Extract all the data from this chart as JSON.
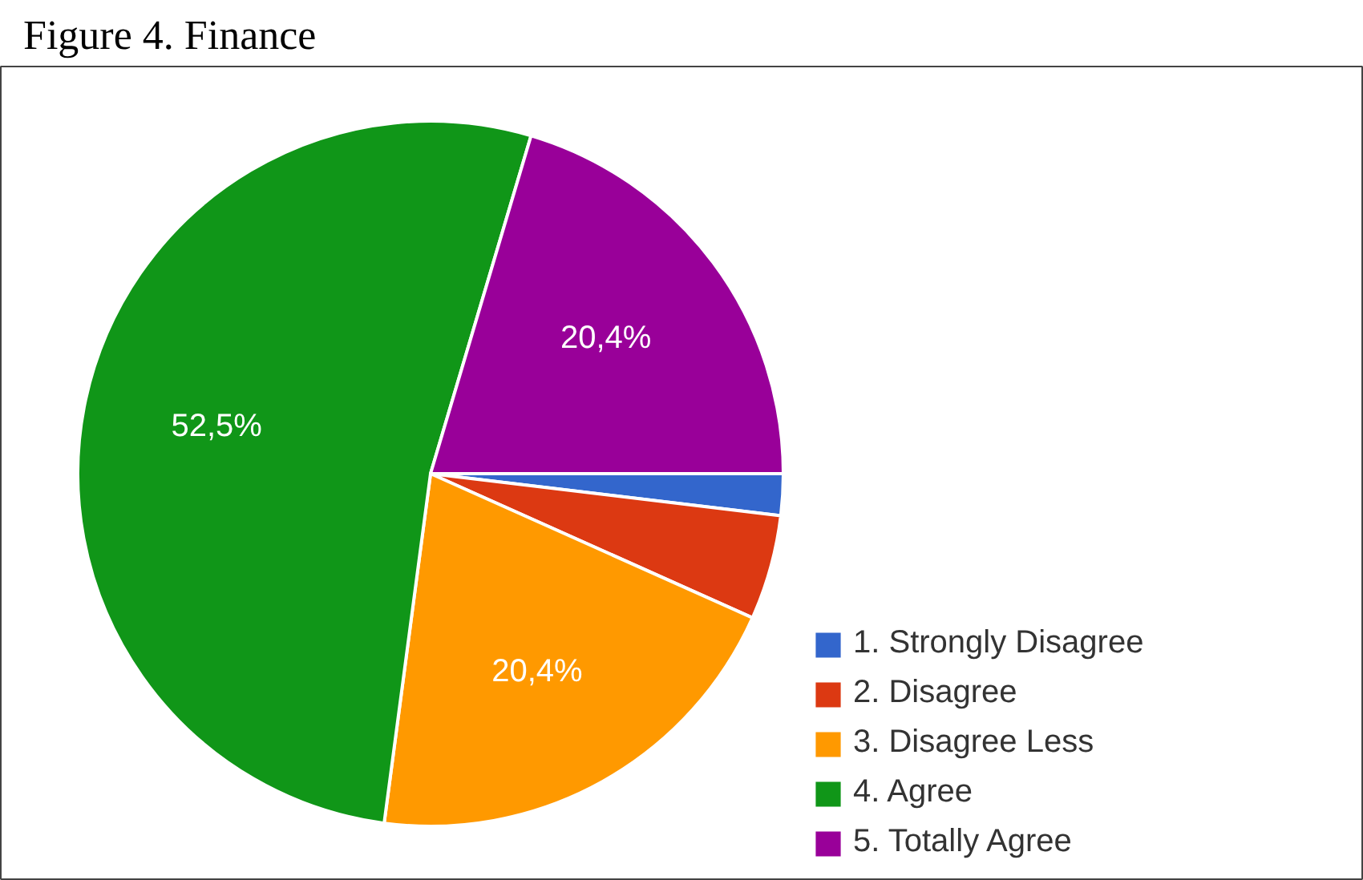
{
  "chart_data": {
    "type": "pie",
    "title": "Figure 4. Finance",
    "categories": [
      "1. Strongly Disagree",
      "2. Disagree",
      "3. Disagree Less",
      "4. Agree",
      "5. Totally Agree"
    ],
    "values": [
      1.9,
      4.8,
      20.4,
      52.5,
      20.4
    ],
    "colors": [
      "#3366cc",
      "#dc3912",
      "#ff9900",
      "#109618",
      "#990099"
    ],
    "value_labels": [
      null,
      null,
      "20,4%",
      "52,5%",
      "20,4%"
    ],
    "legend": "right"
  }
}
